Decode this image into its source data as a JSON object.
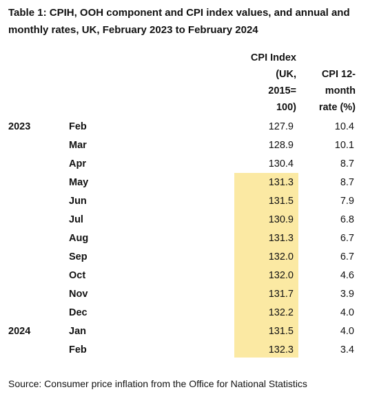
{
  "title": "Table 1: CPIH, OOH component and CPI index values, and annual and monthly rates, UK, February 2023 to February 2024",
  "columns": {
    "index_header": [
      "CPI Index",
      "(UK,",
      "2015=",
      "100)"
    ],
    "rate_header": [
      "CPI 12-",
      "month",
      "rate (%)"
    ]
  },
  "highlight_color": "#fbe9a3",
  "rows": [
    {
      "year": "2023",
      "month": "Feb",
      "index": "127.9",
      "rate": "10.4"
    },
    {
      "year": "",
      "month": "Mar",
      "index": "128.9",
      "rate": "10.1"
    },
    {
      "year": "",
      "month": "Apr",
      "index": "130.4",
      "rate": "8.7"
    },
    {
      "year": "",
      "month": "May",
      "index": "131.3",
      "rate": "8.7"
    },
    {
      "year": "",
      "month": "Jun",
      "index": "131.5",
      "rate": "7.9"
    },
    {
      "year": "",
      "month": "Jul",
      "index": "130.9",
      "rate": "6.8"
    },
    {
      "year": "",
      "month": "Aug",
      "index": "131.3",
      "rate": "6.7"
    },
    {
      "year": "",
      "month": "Sep",
      "index": "132.0",
      "rate": "6.7"
    },
    {
      "year": "",
      "month": "Oct",
      "index": "132.0",
      "rate": "4.6"
    },
    {
      "year": "",
      "month": "Nov",
      "index": "131.7",
      "rate": "3.9"
    },
    {
      "year": "",
      "month": "Dec",
      "index": "132.2",
      "rate": "4.0"
    },
    {
      "year": "2024",
      "month": "Jan",
      "index": "131.5",
      "rate": "4.0"
    },
    {
      "year": "",
      "month": "Feb",
      "index": "132.3",
      "rate": "3.4"
    }
  ],
  "source": "Source: Consumer price inflation from the Office for National Statistics"
}
